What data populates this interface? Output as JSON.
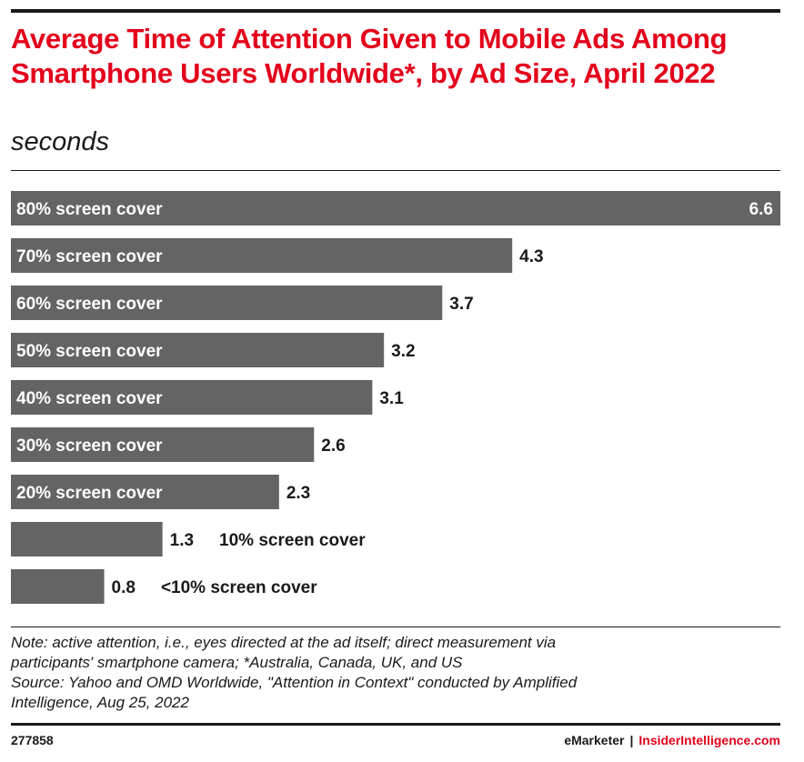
{
  "header": {
    "title": "Average Time of Attention Given to Mobile Ads Among Smartphone Users Worldwide*, by Ad Size, April 2022",
    "subtitle": "seconds"
  },
  "footer": {
    "note_line1": "Note: active attention, i.e., eyes directed at the ad itself; direct measurement via",
    "note_line2": "participants' smartphone camera; *Australia, Canada, UK, and US",
    "source_line1": "Source: Yahoo and OMD Worldwide, \"Attention in Context\" conducted by Amplified",
    "source_line2": "Intelligence, Aug 25, 2022",
    "chart_id": "277858",
    "brand_left": "eMarketer",
    "brand_separator": "|",
    "brand_right": "InsiderIntelligence.com"
  },
  "colors": {
    "title": "#e3001b",
    "bar": "#646464",
    "label_inside": "#ffffff",
    "label_outside": "#1a1a1a"
  },
  "chart_data": {
    "type": "bar",
    "orientation": "horizontal",
    "categories": [
      "80% screen cover",
      "70% screen cover",
      "60% screen cover",
      "50% screen cover",
      "40% screen cover",
      "30% screen cover",
      "20% screen cover",
      "10% screen cover",
      "<10% screen cover"
    ],
    "values": [
      6.6,
      4.3,
      3.7,
      3.2,
      3.1,
      2.6,
      2.3,
      1.3,
      0.8
    ],
    "value_labels": [
      "6.6",
      "4.3",
      "3.7",
      "3.2",
      "3.1",
      "2.6",
      "2.3",
      "1.3",
      "0.8"
    ],
    "xlim": [
      0,
      6.6
    ],
    "grid": false,
    "legend": "none"
  }
}
